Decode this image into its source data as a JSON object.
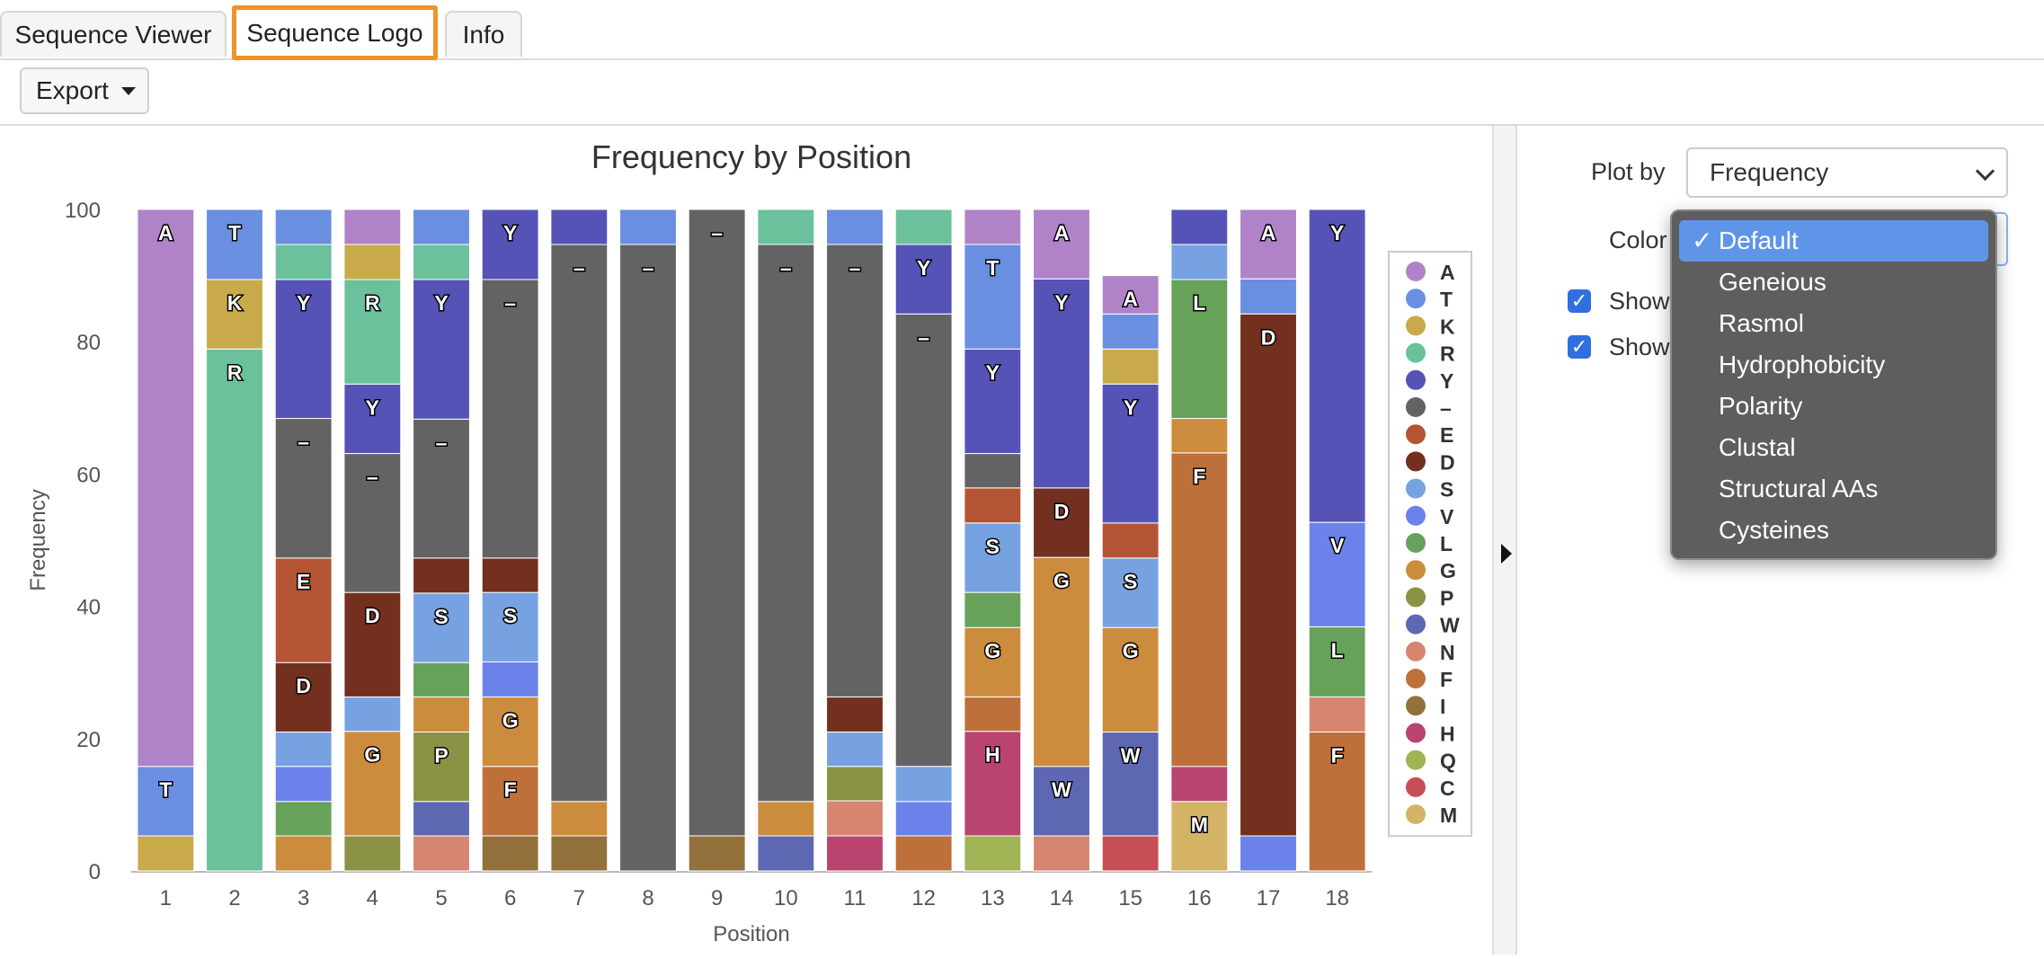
{
  "tabs": [
    {
      "label": "Sequence Viewer",
      "active": false
    },
    {
      "label": "Sequence Logo",
      "active": true
    },
    {
      "label": "Info",
      "active": false
    }
  ],
  "toolbar": {
    "export_label": "Export"
  },
  "side": {
    "plot_by_label": "Plot by",
    "plot_by_value": "Frequency",
    "color_label": "Color",
    "show1_label": "Show",
    "show2_label": "Show",
    "show1_checked": true,
    "show2_checked": true
  },
  "dropdown": {
    "selected": "Default",
    "options": [
      "Default",
      "Geneious",
      "Rasmol",
      "Hydrophobicity",
      "Polarity",
      "Clustal",
      "Structural AAs",
      "Cysteines"
    ]
  },
  "chart_data": {
    "type": "bar",
    "stacked": true,
    "title": "Frequency by Position",
    "xlabel": "Position",
    "ylabel": "Frequency",
    "ylim": [
      0,
      100
    ],
    "yticks": [
      0,
      20,
      40,
      60,
      80,
      100
    ],
    "categories": [
      "1",
      "2",
      "3",
      "4",
      "5",
      "6",
      "7",
      "8",
      "9",
      "10",
      "11",
      "12",
      "13",
      "14",
      "15",
      "16",
      "17",
      "18"
    ],
    "legend": [
      {
        "sym": "A",
        "color": "#b083c9"
      },
      {
        "sym": "T",
        "color": "#6a8fe0"
      },
      {
        "sym": "K",
        "color": "#c9aa4a"
      },
      {
        "sym": "R",
        "color": "#6ac19c"
      },
      {
        "sym": "Y",
        "color": "#5553b5"
      },
      {
        "sym": "–",
        "color": "#636363"
      },
      {
        "sym": "E",
        "color": "#b35535"
      },
      {
        "sym": "D",
        "color": "#74301f"
      },
      {
        "sym": "S",
        "color": "#77a2e2"
      },
      {
        "sym": "V",
        "color": "#6b82ea"
      },
      {
        "sym": "L",
        "color": "#66a25a"
      },
      {
        "sym": "G",
        "color": "#cc8c3d"
      },
      {
        "sym": "P",
        "color": "#8b9145"
      },
      {
        "sym": "W",
        "color": "#5e67b2"
      },
      {
        "sym": "N",
        "color": "#d68670"
      },
      {
        "sym": "F",
        "color": "#bd703a"
      },
      {
        "sym": "I",
        "color": "#93713c"
      },
      {
        "sym": "H",
        "color": "#b8446f"
      },
      {
        "sym": "Q",
        "color": "#9fb455"
      },
      {
        "sym": "C",
        "color": "#c74e55"
      },
      {
        "sym": "M",
        "color": "#d5b366"
      }
    ],
    "stacks": [
      [
        [
          "K",
          5.3
        ],
        [
          "T",
          10.5,
          "T"
        ],
        [
          "A",
          84.2,
          "A"
        ]
      ],
      [
        [
          "R",
          78.9,
          "R"
        ],
        [
          "K",
          10.5,
          "K"
        ],
        [
          "T",
          10.6,
          "T"
        ]
      ],
      [
        [
          "G",
          5.3
        ],
        [
          "L",
          5.2
        ],
        [
          "V",
          5.3
        ],
        [
          "S",
          5.2
        ],
        [
          "D",
          10.5,
          "D"
        ],
        [
          "E",
          15.8,
          "E"
        ],
        [
          "–",
          21.1,
          "–"
        ],
        [
          "Y",
          21.0,
          "Y"
        ],
        [
          "R",
          5.3
        ],
        [
          "T",
          5.3
        ]
      ],
      [
        [
          "P",
          5.3
        ],
        [
          "G",
          15.8,
          "G"
        ],
        [
          "S",
          5.2
        ],
        [
          "D",
          15.8,
          "D"
        ],
        [
          "–",
          21.0,
          "–"
        ],
        [
          "Y",
          10.5,
          "Y"
        ],
        [
          "R",
          15.8,
          "R"
        ],
        [
          "K",
          5.3
        ],
        [
          "A",
          5.3
        ]
      ],
      [
        [
          "N",
          5.3
        ],
        [
          "W",
          5.2
        ],
        [
          "P",
          10.5,
          "P"
        ],
        [
          "G",
          5.3
        ],
        [
          "L",
          5.2
        ],
        [
          "S",
          10.5,
          "S"
        ],
        [
          "D",
          5.3
        ],
        [
          "–",
          21.0,
          "–"
        ],
        [
          "Y",
          21.1,
          "Y"
        ],
        [
          "R",
          5.3
        ],
        [
          "T",
          5.3
        ]
      ],
      [
        [
          "I",
          5.3
        ],
        [
          "F",
          10.5,
          "F"
        ],
        [
          "G",
          10.5,
          "G"
        ],
        [
          "V",
          5.3
        ],
        [
          "S",
          10.5,
          "S"
        ],
        [
          "D",
          5.2
        ],
        [
          "–",
          42.1,
          "–"
        ],
        [
          "Y",
          10.6,
          "Y"
        ]
      ],
      [
        [
          "I",
          5.3
        ],
        [
          "G",
          5.2
        ],
        [
          "–",
          84.2,
          "–"
        ],
        [
          "Y",
          5.3
        ]
      ],
      [
        [
          "–",
          94.7,
          "–"
        ],
        [
          "T",
          5.3
        ]
      ],
      [
        [
          "I",
          5.3
        ],
        [
          "–",
          94.7,
          "–"
        ]
      ],
      [
        [
          "W",
          5.3
        ],
        [
          "G",
          5.2
        ],
        [
          "–",
          84.2,
          "–"
        ],
        [
          "R",
          5.3
        ]
      ],
      [
        [
          "H",
          5.3
        ],
        [
          "N",
          5.3
        ],
        [
          "P",
          5.2
        ],
        [
          "S",
          5.2
        ],
        [
          "D",
          5.3
        ],
        [
          "–",
          68.4,
          "–"
        ],
        [
          "T",
          5.3
        ]
      ],
      [
        [
          "F",
          5.3
        ],
        [
          "V",
          5.2
        ],
        [
          "S",
          5.3
        ],
        [
          "–",
          68.4,
          "–"
        ],
        [
          "Y",
          10.5,
          "Y"
        ],
        [
          "R",
          5.3
        ]
      ],
      [
        [
          "Q",
          5.3
        ],
        [
          "H",
          15.8,
          "H"
        ],
        [
          "F",
          5.2
        ],
        [
          "G",
          10.5,
          "G"
        ],
        [
          "L",
          5.3
        ],
        [
          "S",
          10.5,
          "S"
        ],
        [
          "E",
          5.3
        ],
        [
          "–",
          5.2
        ],
        [
          "Y",
          15.8,
          "Y"
        ],
        [
          "T",
          15.8,
          "T"
        ],
        [
          "A",
          5.3
        ]
      ],
      [
        [
          "N",
          5.3
        ],
        [
          "W",
          10.5,
          "W"
        ],
        [
          "G",
          31.6,
          "G"
        ],
        [
          "D",
          10.5,
          "D"
        ],
        [
          "Y",
          31.6,
          "Y"
        ],
        [
          "A",
          10.5,
          "A"
        ]
      ],
      [
        [
          "C",
          5.3
        ],
        [
          "W",
          15.7,
          "W"
        ],
        [
          "G",
          15.8,
          "G"
        ],
        [
          "S",
          10.5,
          "S"
        ],
        [
          "E",
          5.3
        ],
        [
          "Y",
          21.0,
          "Y"
        ],
        [
          "K",
          5.3
        ],
        [
          "T",
          5.3
        ],
        [
          "A",
          5.8,
          "A"
        ]
      ],
      [
        [
          "M",
          10.5,
          "M"
        ],
        [
          "H",
          5.3
        ],
        [
          "F",
          47.4,
          "F"
        ],
        [
          "G",
          5.2
        ],
        [
          "L",
          21.0,
          "L"
        ],
        [
          "S",
          5.3
        ],
        [
          "Y",
          5.3
        ]
      ],
      [
        [
          "V",
          5.3
        ],
        [
          "D",
          78.9,
          "D"
        ],
        [
          "T",
          5.3
        ],
        [
          "A",
          10.5,
          "A"
        ]
      ],
      [
        [
          "F",
          21.0,
          "F"
        ],
        [
          "N",
          5.3
        ],
        [
          "L",
          10.6,
          "L"
        ],
        [
          "V",
          15.8,
          "V"
        ],
        [
          "Y",
          47.3,
          "Y"
        ]
      ]
    ]
  }
}
